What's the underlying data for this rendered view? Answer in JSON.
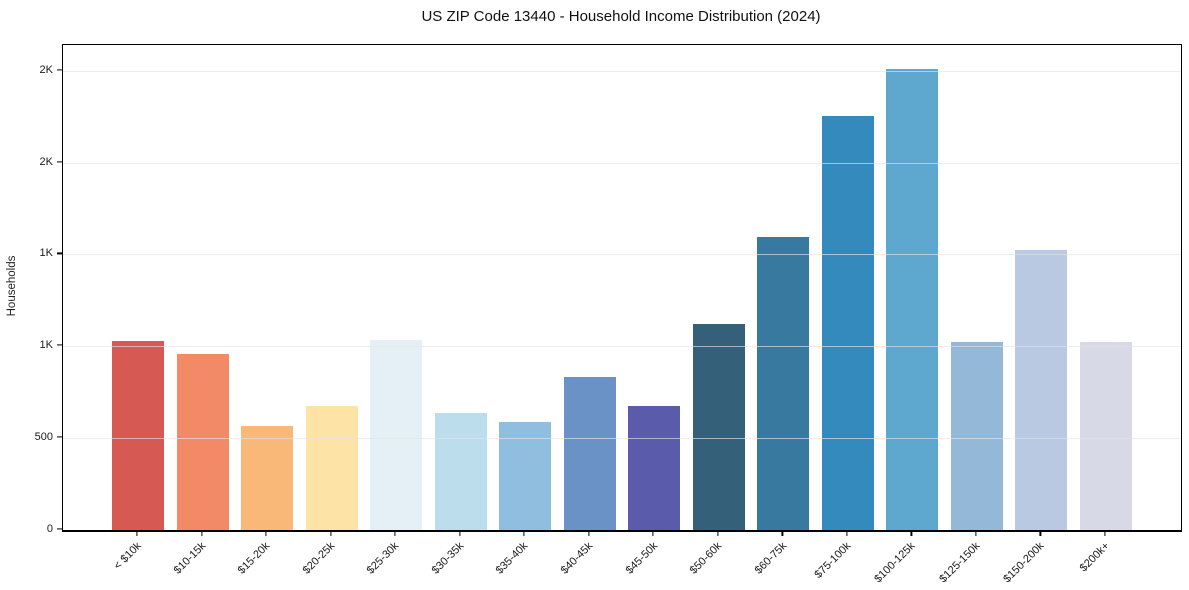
{
  "chart_data": {
    "type": "bar",
    "title": "US ZIP Code 13440 - Household Income Distribution (2024)",
    "xlabel": "",
    "ylabel": "Households",
    "categories": [
      "< $10k",
      "$10-15k",
      "$15-20k",
      "$20-25k",
      "$25-30k",
      "$30-35k",
      "$35-40k",
      "$40-45k",
      "$45-50k",
      "$50-60k",
      "$60-75k",
      "$75-100k",
      "$100-125k",
      "$125-150k",
      "$150-200k",
      "$200k+"
    ],
    "values": [
      1027,
      960,
      568,
      677,
      1037,
      635,
      588,
      831,
      673,
      1122,
      1595,
      2253,
      2509,
      1023,
      1523,
      1023
    ],
    "bar_colors": [
      "#d65953",
      "#f28a68",
      "#f9b877",
      "#fde3a6",
      "#e4f0f6",
      "#bbddec",
      "#90bede",
      "#6b92c6",
      "#5a5cab",
      "#35607a",
      "#38799f",
      "#3489bd",
      "#5ea7ce",
      "#94b8d7",
      "#b8c9e1",
      "#d7d9e6"
    ],
    "ylim": [
      0,
      2640
    ],
    "y_ticks": [
      {
        "value": 0,
        "label": "0"
      },
      {
        "value": 500,
        "label": "500"
      },
      {
        "value": 1000,
        "label": "1K"
      },
      {
        "value": 1500,
        "label": "1K"
      },
      {
        "value": 2000,
        "label": "2K"
      },
      {
        "value": 2500,
        "label": "2K"
      }
    ],
    "x_tick_rotation": -45,
    "grid": "horizontal-only",
    "legend": "none",
    "background": "#ffffff",
    "spine_color": "#000000"
  }
}
